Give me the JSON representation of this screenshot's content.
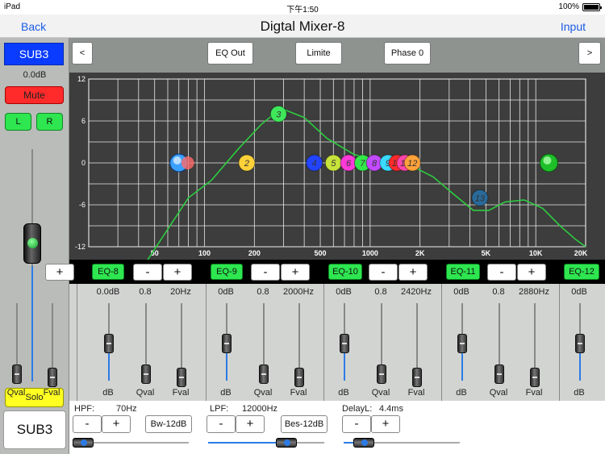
{
  "status": {
    "device": "iPad",
    "time": "下午1:50",
    "battery": "100%"
  },
  "nav": {
    "back": "Back",
    "title": "Digtal Mixer-8",
    "input": "Input"
  },
  "channel": {
    "name": "SUB3",
    "gain": "0.0dB",
    "mute": "Mute",
    "left": "L",
    "right": "R",
    "solo": "Solo",
    "name_big": "SUB3",
    "fader_level": 0.55
  },
  "toolbar": {
    "prev": "<",
    "eq_out": "EQ Out",
    "limite": "Limite",
    "phase": "Phase 0",
    "next": ">"
  },
  "graph": {
    "y_ticks": [
      "12",
      "6",
      "0",
      "-6",
      "-12"
    ],
    "x_ticks": [
      "50",
      "100",
      "200",
      "500",
      "1000",
      "2K",
      "5K",
      "10K",
      "20K"
    ],
    "nodes": [
      "3",
      "2",
      "4",
      "5",
      "6",
      "7",
      "8",
      "9",
      "10",
      "11",
      "12",
      "13"
    ]
  },
  "eq_row": {
    "labels": [
      "EQ-8",
      "EQ-9",
      "EQ-10",
      "EQ-11",
      "EQ-12"
    ],
    "minus": "-",
    "plus": "+"
  },
  "bands": [
    {
      "gain": "Hz",
      "q": "",
      "freq": ""
    },
    {
      "gain": "0.0dB",
      "q": "0.8",
      "freq": "20Hz"
    },
    {
      "gain": "0dB",
      "q": "0.8",
      "freq": "2000Hz"
    },
    {
      "gain": "0dB",
      "q": "0.8",
      "freq": "2420Hz"
    },
    {
      "gain": "0dB",
      "q": "0.8",
      "freq": "2880Hz"
    },
    {
      "gain": "0dB",
      "q": "",
      "freq": ""
    }
  ],
  "band_labels": {
    "db": "dB",
    "qval": "Qval",
    "fval": "Fval"
  },
  "bottom": {
    "hpf_label": "HPF:",
    "hpf_value": "70Hz",
    "hpf_type": "Bw-12dB",
    "lpf_label": "LPF:",
    "lpf_value": "12000Hz",
    "lpf_type": "Bes-12dB",
    "delay_label": "DelayL:",
    "delay_value": "4.4ms",
    "minus": "-",
    "plus": "+"
  },
  "colors": {
    "accent_green": "#2ee650",
    "curve": "#2ecc40",
    "mute_red": "#ff2a2a",
    "solo_yellow": "#ffff22",
    "channel_blue": "#0a3cff"
  }
}
